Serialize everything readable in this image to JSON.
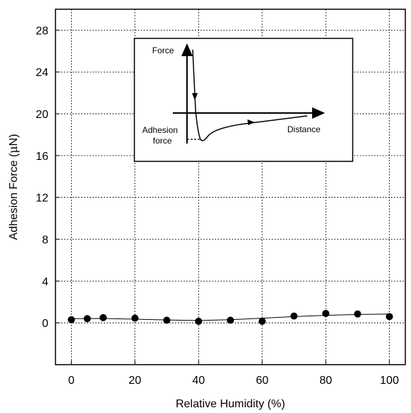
{
  "chart_data": {
    "type": "scatter",
    "xlabel": "Relative Humidity (%)",
    "ylabel_prefix": "Adhesion Force (",
    "ylabel_mu": "μ",
    "ylabel_suffix": "N)",
    "xlim": [
      -5,
      105
    ],
    "ylim": [
      -4,
      30
    ],
    "xticks": [
      0,
      20,
      40,
      60,
      80,
      100
    ],
    "yticks": [
      0,
      4,
      8,
      12,
      16,
      20,
      24,
      28
    ],
    "grid": true,
    "series": [
      {
        "points": [
          {
            "x": 0,
            "y": 0.3
          },
          {
            "x": 5,
            "y": 0.4
          },
          {
            "x": 10,
            "y": 0.5
          },
          {
            "x": 20,
            "y": 0.45
          },
          {
            "x": 30,
            "y": 0.25
          },
          {
            "x": 40,
            "y": 0.15
          },
          {
            "x": 50,
            "y": 0.25
          },
          {
            "x": 60,
            "y": 0.15
          },
          {
            "x": 70,
            "y": 0.65
          },
          {
            "x": 80,
            "y": 0.9
          },
          {
            "x": 90,
            "y": 0.85
          },
          {
            "x": 100,
            "y": 0.6
          }
        ],
        "trend": [
          {
            "x": 0,
            "y": 0.4
          },
          {
            "x": 10,
            "y": 0.42
          },
          {
            "x": 20,
            "y": 0.35
          },
          {
            "x": 30,
            "y": 0.28
          },
          {
            "x": 40,
            "y": 0.22
          },
          {
            "x": 50,
            "y": 0.3
          },
          {
            "x": 60,
            "y": 0.45
          },
          {
            "x": 70,
            "y": 0.6
          },
          {
            "x": 80,
            "y": 0.72
          },
          {
            "x": 90,
            "y": 0.8
          },
          {
            "x": 100,
            "y": 0.85
          }
        ]
      }
    ],
    "inset": {
      "force_label": "Force",
      "distance_label": "Distance",
      "adhesion_line1": "Adhesion",
      "adhesion_line2": "force"
    }
  }
}
